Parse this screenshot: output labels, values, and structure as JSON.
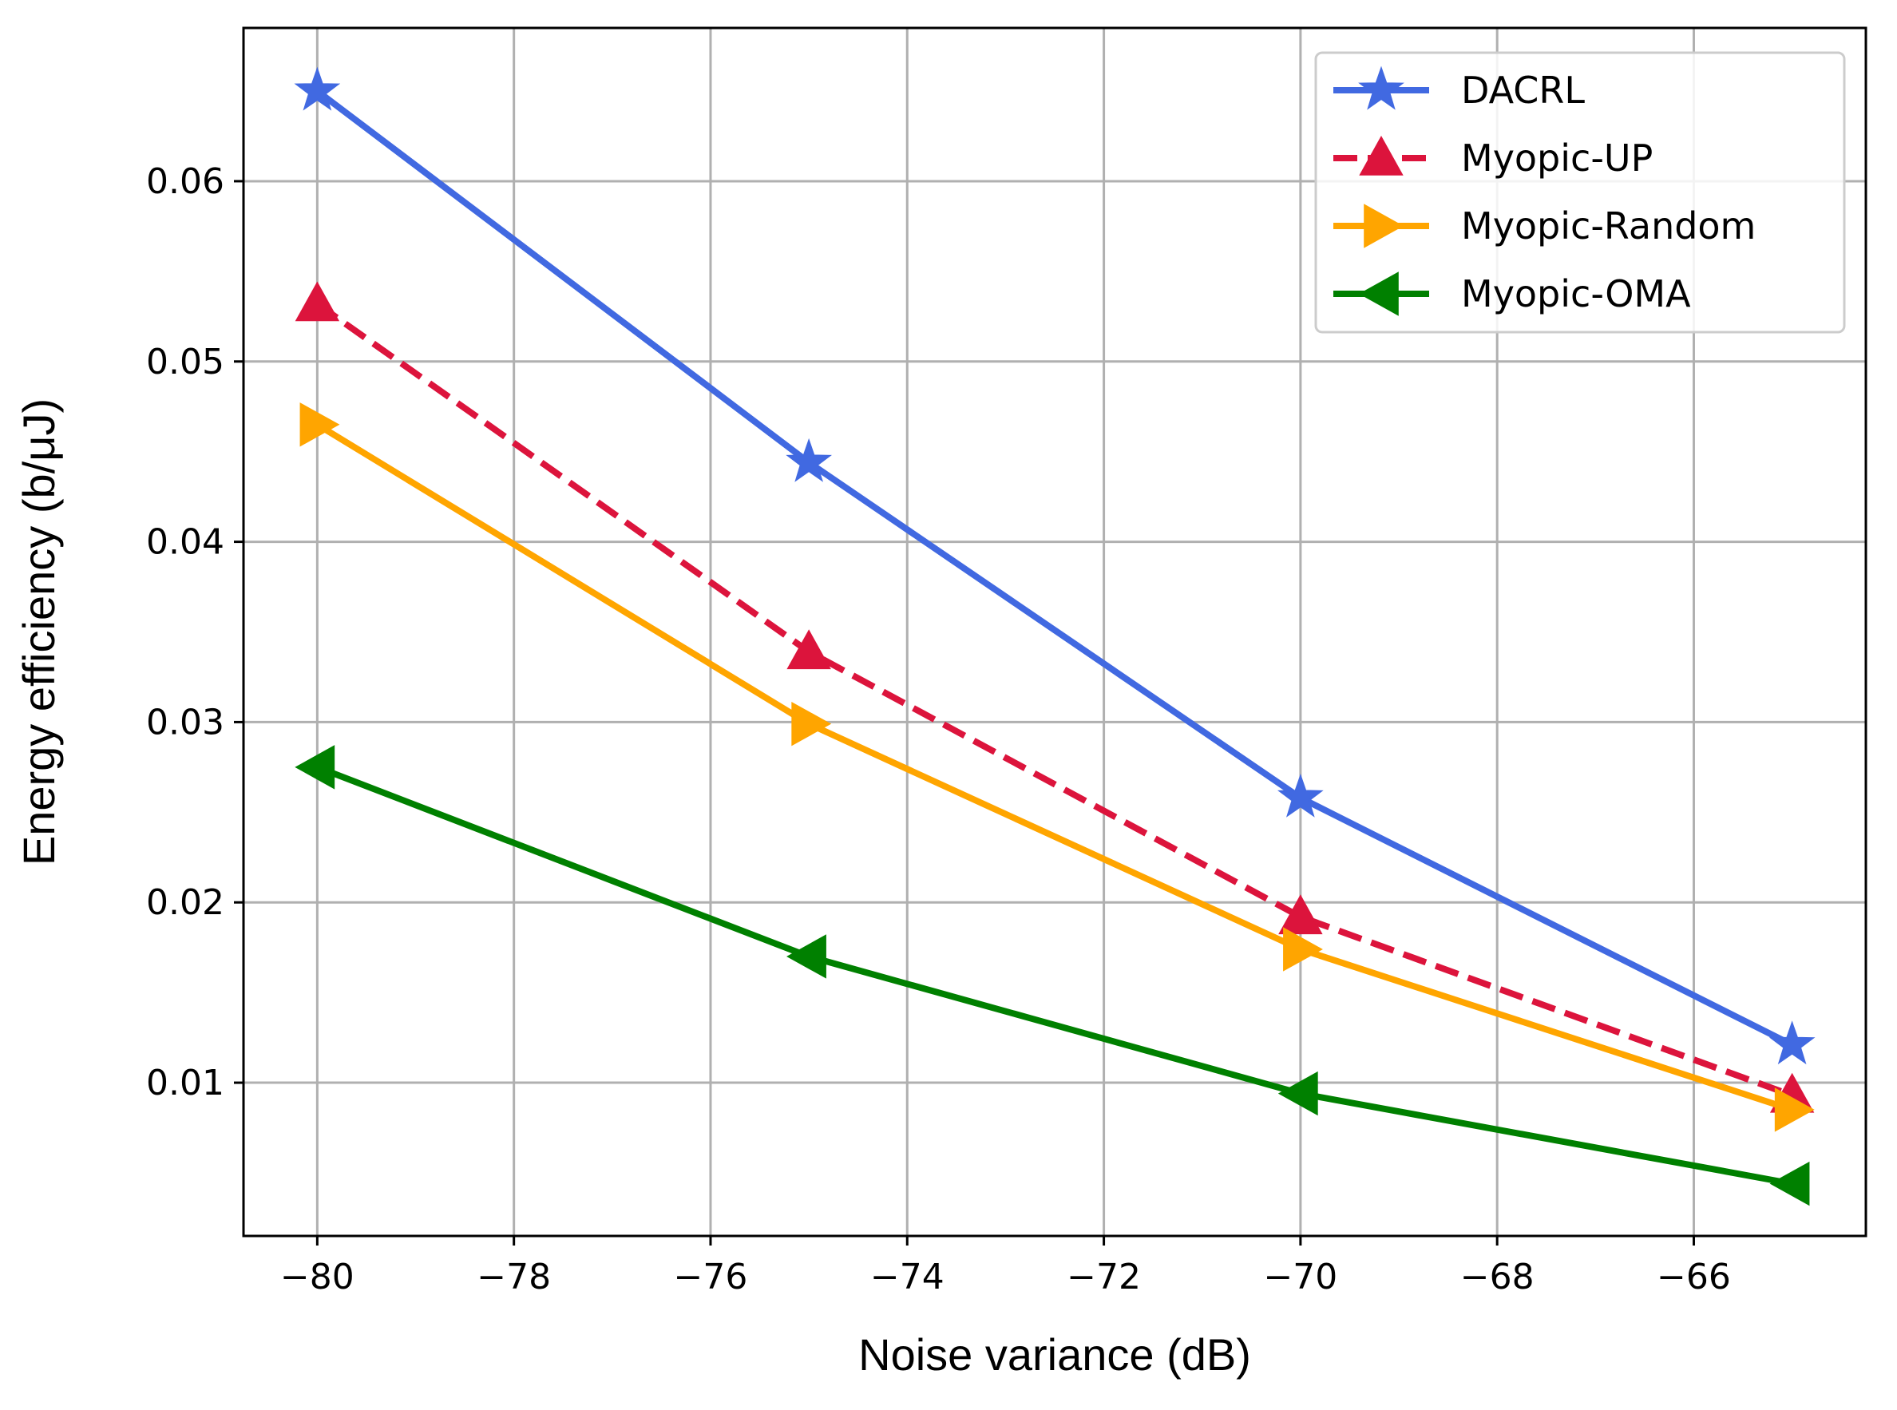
{
  "chart_data": {
    "type": "line",
    "title": "",
    "xlabel": "Noise variance (dB)",
    "ylabel": "Energy efficiency (b/μJ)",
    "xlim": [
      -80.75,
      -64.25
    ],
    "ylim": [
      0.0015,
      0.0685
    ],
    "x_ticks": [
      -80,
      -78,
      -76,
      -74,
      -72,
      -70,
      -68,
      -66
    ],
    "x_tick_labels": [
      "−80",
      "−78",
      "−76",
      "−74",
      "−72",
      "−70",
      "−68",
      "−66"
    ],
    "y_ticks": [
      0.01,
      0.02,
      0.03,
      0.04,
      0.05,
      0.06
    ],
    "y_tick_labels": [
      "0.01",
      "0.02",
      "0.03",
      "0.04",
      "0.05",
      "0.06"
    ],
    "grid": true,
    "legend_position": "top-right",
    "x": [
      -80,
      -75,
      -70,
      -65
    ],
    "series": [
      {
        "name": "DACRL",
        "values": [
          0.065,
          0.0444,
          0.0258,
          0.0121
        ],
        "color": "#4169E1",
        "marker": "star",
        "dash": "solid"
      },
      {
        "name": "Myopic-UP",
        "values": [
          0.0532,
          0.0339,
          0.0192,
          0.0093
        ],
        "color": "#DC143C",
        "marker": "triangle-up",
        "dash": "dashed"
      },
      {
        "name": "Myopic-Random",
        "values": [
          0.0465,
          0.0299,
          0.0174,
          0.0085
        ],
        "color": "#FFA500",
        "marker": "triangle-right",
        "dash": "solid"
      },
      {
        "name": "Myopic-OMA",
        "values": [
          0.0275,
          0.017,
          0.0094,
          0.0044
        ],
        "color": "#008000",
        "marker": "triangle-left",
        "dash": "solid"
      }
    ]
  }
}
